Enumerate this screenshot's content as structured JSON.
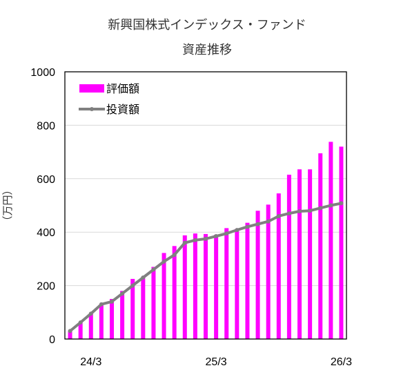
{
  "chart_data": {
    "type": "bar+line",
    "title": "新興国株式インデックス・ファンド",
    "subtitle": "資産推移",
    "ylabel": "（万円）",
    "ylim": [
      0,
      1000
    ],
    "yticks": [
      0,
      200,
      400,
      600,
      800,
      1000
    ],
    "x_tick_labels": [
      {
        "label": "24/3",
        "index": 2
      },
      {
        "label": "25/3",
        "index": 14
      },
      {
        "label": "26/3",
        "index": 26
      }
    ],
    "grid": true,
    "legend_position": "top-left",
    "series": [
      {
        "name": "評価額",
        "kind": "bar",
        "color": "#FF00FF",
        "values": [
          30,
          62,
          95,
          132,
          150,
          180,
          225,
          232,
          270,
          322,
          348,
          388,
          395,
          393,
          390,
          415,
          412,
          435,
          480,
          503,
          545,
          615,
          635,
          635,
          695,
          738,
          720
        ]
      },
      {
        "name": "投資額",
        "kind": "line",
        "color": "#808080",
        "values": [
          30,
          62,
          95,
          130,
          140,
          170,
          200,
          230,
          260,
          290,
          315,
          360,
          370,
          375,
          385,
          395,
          408,
          420,
          430,
          440,
          460,
          470,
          478,
          480,
          490,
          500,
          508
        ]
      }
    ]
  }
}
